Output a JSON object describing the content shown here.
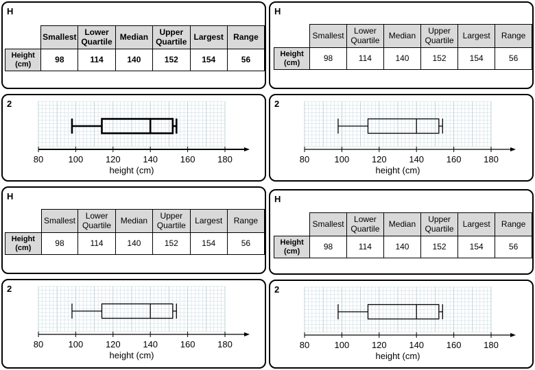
{
  "cards": [
    {
      "letter": "H"
    },
    {
      "letter": "H"
    },
    {
      "letter": "H"
    },
    {
      "letter": "H"
    }
  ],
  "box_cards": [
    {
      "number": "2"
    },
    {
      "number": "2"
    },
    {
      "number": "2"
    },
    {
      "number": "2"
    }
  ],
  "table": {
    "headers": [
      "Smallest",
      "Lower Quartile",
      "Median",
      "Upper Quartile",
      "Largest",
      "Range"
    ],
    "row_label": "Height (cm)",
    "values": [
      "98",
      "114",
      "140",
      "152",
      "154",
      "56"
    ]
  },
  "chart_data": {
    "type": "boxplot",
    "min": 98,
    "q1": 114,
    "median": 140,
    "q3": 152,
    "max": 154,
    "xlim": [
      80,
      180
    ],
    "xticks": [
      "80",
      "100",
      "120",
      "140",
      "160",
      "180"
    ],
    "xlabel": "height (cm)",
    "grid": true,
    "colors": {
      "grid": "#b7cfd6",
      "stroke": "#000000"
    }
  }
}
